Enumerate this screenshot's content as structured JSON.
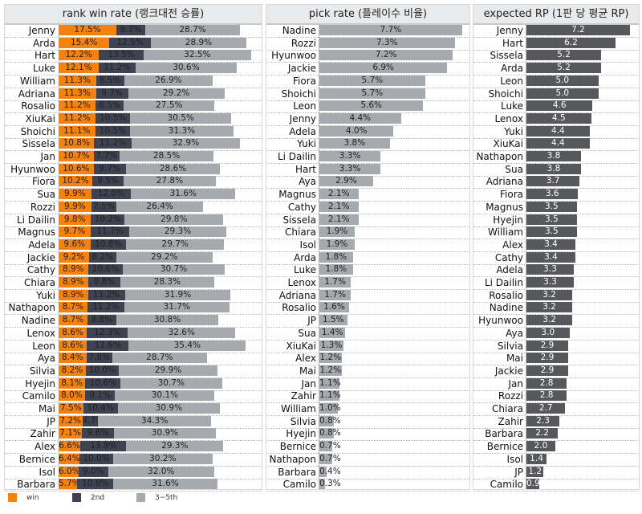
{
  "colors": {
    "win": "#f5810f",
    "second": "#3f4250",
    "third": "#a6a9ad",
    "pick": "#a6a9ad",
    "rp": "#56585c"
  },
  "chart_data": [
    {
      "type": "bar",
      "orientation": "horizontal",
      "stacked": true,
      "title": "rank win rate (랭크대전 승률)",
      "categories": [
        "Jenny",
        "Arda",
        "Hart",
        "Luke",
        "William",
        "Adriana",
        "Rosalio",
        "XiuKai",
        "Shoichi",
        "Sissela",
        "Jan",
        "Hyunwoo",
        "Fiora",
        "Sua",
        "Rozzi",
        "Li Dailin",
        "Magnus",
        "Adela",
        "Jackie",
        "Cathy",
        "Chiara",
        "Yuki",
        "Nathapon",
        "Nadine",
        "Lenox",
        "Leon",
        "Aya",
        "Silvia",
        "Hyejin",
        "Camilo",
        "Mai",
        "JP",
        "Zahir",
        "Alex",
        "Bernice",
        "Isol",
        "Barbara"
      ],
      "series": [
        {
          "name": "win",
          "values": [
            17.5,
            15.4,
            12.2,
            12.1,
            11.3,
            11.3,
            11.2,
            11.2,
            11.1,
            10.8,
            10.7,
            10.6,
            10.2,
            9.9,
            9.9,
            9.8,
            9.7,
            9.6,
            9.2,
            8.9,
            8.9,
            8.9,
            8.7,
            8.7,
            8.6,
            8.6,
            8.4,
            8.2,
            8.1,
            8.0,
            7.5,
            7.2,
            7.1,
            6.6,
            6.4,
            6.0,
            5.7
          ]
        },
        {
          "name": "2nd",
          "values": [
            8.7,
            12.5,
            13.5,
            11.2,
            8.5,
            9.7,
            8.5,
            10.5,
            10.5,
            11.2,
            7.7,
            9.7,
            9.5,
            12.0,
            7.5,
            10.2,
            11.7,
            10.8,
            8.2,
            10.6,
            9.8,
            11.2,
            11.2,
            8.8,
            12.3,
            12.6,
            7.8,
            10.0,
            10.6,
            9.1,
            10.4,
            4.7,
            9.6,
            13.9,
            10.0,
            9.0,
            10.8
          ]
        },
        {
          "name": "3~5th",
          "values": [
            28.7,
            28.9,
            32.5,
            30.6,
            26.9,
            29.2,
            27.5,
            30.5,
            31.3,
            32.9,
            28.5,
            28.6,
            27.8,
            31.6,
            26.4,
            29.8,
            29.3,
            29.7,
            29.2,
            30.7,
            28.3,
            31.9,
            31.7,
            30.8,
            32.6,
            35.4,
            28.7,
            29.9,
            30.7,
            30.1,
            30.9,
            34.3,
            30.9,
            29.3,
            30.2,
            32.0,
            31.6
          ]
        }
      ],
      "unit": "%",
      "legend": "bottom-left"
    },
    {
      "type": "bar",
      "orientation": "horizontal",
      "title": "pick rate (플레이수 비율)",
      "categories": [
        "Nadine",
        "Rozzi",
        "Hyunwoo",
        "Jackie",
        "Fiora",
        "Shoichi",
        "Leon",
        "Jenny",
        "Adela",
        "Yuki",
        "Li Dailin",
        "Hart",
        "Aya",
        "Magnus",
        "Cathy",
        "Sissela",
        "Chiara",
        "Isol",
        "Arda",
        "Luke",
        "Lenox",
        "Adriana",
        "Rosalio",
        "JP",
        "Sua",
        "XiuKai",
        "Alex",
        "Mai",
        "Jan",
        "Zahir",
        "William",
        "Silvia",
        "Hyejin",
        "Bernice",
        "Nathapon",
        "Barbara",
        "Camilo"
      ],
      "values": [
        7.7,
        7.3,
        7.2,
        6.9,
        5.7,
        5.7,
        5.6,
        4.4,
        4.0,
        3.8,
        3.3,
        3.3,
        2.9,
        2.1,
        2.1,
        2.1,
        1.9,
        1.9,
        1.8,
        1.8,
        1.7,
        1.7,
        1.6,
        1.5,
        1.4,
        1.3,
        1.2,
        1.2,
        1.1,
        1.1,
        1.0,
        0.8,
        0.8,
        0.7,
        0.7,
        0.4,
        0.3
      ],
      "unit": "%"
    },
    {
      "type": "bar",
      "orientation": "horizontal",
      "title": "expected RP (1판 당 평균 RP)",
      "categories": [
        "Jenny",
        "Hart",
        "Sissela",
        "Arda",
        "Leon",
        "Shoichi",
        "Luke",
        "Lenox",
        "Yuki",
        "XiuKai",
        "Nathapon",
        "Sua",
        "Adriana",
        "Fiora",
        "Magnus",
        "Hyejin",
        "William",
        "Alex",
        "Cathy",
        "Adela",
        "Li Dailin",
        "Rosalio",
        "Nadine",
        "Hyunwoo",
        "Aya",
        "Silvia",
        "Mai",
        "Jackie",
        "Jan",
        "Rozzi",
        "Chiara",
        "Zahir",
        "Barbara",
        "Bernice",
        "Isol",
        "JP",
        "Camilo"
      ],
      "values": [
        7.2,
        6.2,
        5.2,
        5.2,
        5.0,
        5.0,
        4.6,
        4.5,
        4.4,
        4.4,
        3.8,
        3.8,
        3.7,
        3.6,
        3.5,
        3.5,
        3.5,
        3.4,
        3.4,
        3.3,
        3.3,
        3.2,
        3.2,
        3.2,
        3.0,
        2.9,
        2.9,
        2.9,
        2.8,
        2.8,
        2.7,
        2.3,
        2.2,
        2.0,
        1.4,
        1.2,
        0.9
      ],
      "unit": ""
    }
  ]
}
